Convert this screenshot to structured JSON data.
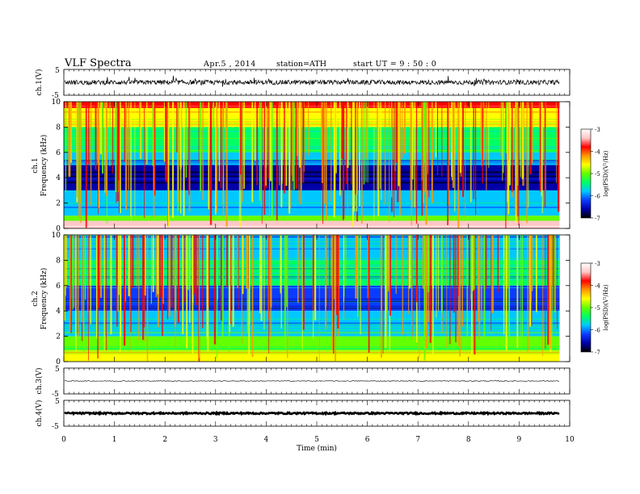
{
  "header": {
    "title": "VLF  Spectra",
    "date": "Apr.5  , 2014",
    "station": "station=ATH",
    "start": "start  UT  =   9  : 50 : 0"
  },
  "colors": {
    "colormap": [
      "#000000",
      "#0000a8",
      "#0a3cff",
      "#00c8ff",
      "#00ff64",
      "#64ff00",
      "#ffff00",
      "#ff9600",
      "#ff0000",
      "#ffc8c8",
      "#ffffff"
    ],
    "trace": "#000000"
  },
  "chart_data": [
    {
      "type": "line",
      "panel": "ch1-waveform",
      "ylabel": "ch.1(V)",
      "ylim": [
        -5,
        5
      ],
      "yticks": [
        "5",
        "-5"
      ],
      "baseline": 0,
      "amplitude": 0.9
    },
    {
      "type": "heatmap",
      "panel": "ch1-spectrogram",
      "ylabel_lines": [
        "ch.1",
        "Frequency  (kHz)"
      ],
      "ylim": [
        0,
        10
      ],
      "yticks": [
        "0",
        "2",
        "4",
        "6",
        "8",
        "10"
      ],
      "colorbar": {
        "label": "log(PSD)(V²/Hz)",
        "range": [
          -7,
          -3
        ],
        "ticks": [
          "-3",
          "-4",
          "-5",
          "-6",
          "-7"
        ]
      },
      "bands": [
        {
          "from": 9.5,
          "to": 10.0,
          "value": -3.9
        },
        {
          "from": 8.0,
          "to": 9.5,
          "value": -4.5
        },
        {
          "from": 6.0,
          "to": 8.0,
          "value": -5.4
        },
        {
          "from": 5.0,
          "to": 6.0,
          "value": -6.0
        },
        {
          "from": 3.0,
          "to": 5.0,
          "value": -6.6
        },
        {
          "from": 1.0,
          "to": 3.0,
          "value": -5.9
        },
        {
          "from": 0.6,
          "to": 1.0,
          "value": -5.2
        },
        {
          "from": 0.0,
          "to": 0.6,
          "value": -3.6
        }
      ]
    },
    {
      "type": "heatmap",
      "panel": "ch2-spectrogram",
      "ylabel_lines": [
        "ch.2",
        "Frequency  (kHz)"
      ],
      "ylim": [
        0,
        10
      ],
      "yticks": [
        "0",
        "2",
        "4",
        "6",
        "8",
        "10"
      ],
      "colorbar": {
        "label": "log(PSD)(V²/Hz)",
        "range": [
          -7,
          -3
        ],
        "ticks": [
          "-3",
          "-4",
          "-5",
          "-6",
          "-7"
        ]
      },
      "bands": [
        {
          "from": 8.0,
          "to": 10.0,
          "value": -5.9
        },
        {
          "from": 6.0,
          "to": 8.0,
          "value": -5.6
        },
        {
          "from": 4.0,
          "to": 6.0,
          "value": -6.3
        },
        {
          "from": 2.0,
          "to": 4.0,
          "value": -5.7
        },
        {
          "from": 0.8,
          "to": 2.0,
          "value": -5.1
        },
        {
          "from": 0.0,
          "to": 0.8,
          "value": -4.4
        }
      ]
    },
    {
      "type": "line",
      "panel": "ch3-waveform",
      "ylabel": "ch.3(V)",
      "ylim": [
        -5,
        5
      ],
      "yticks": [
        "5",
        "-5"
      ],
      "baseline": 0,
      "amplitude": 0.15
    },
    {
      "type": "line",
      "panel": "ch4-waveform",
      "ylabel": "ch.4(V)",
      "ylim": [
        -5,
        5
      ],
      "yticks": [
        "5",
        "-5"
      ],
      "baseline": 0,
      "amplitude": 0.3
    }
  ],
  "xaxis": {
    "label": "Time  (min)",
    "range": [
      0,
      10
    ],
    "data_end": 9.8,
    "ticks": [
      "0",
      "1",
      "2",
      "3",
      "4",
      "5",
      "6",
      "7",
      "8",
      "9",
      "10"
    ]
  }
}
